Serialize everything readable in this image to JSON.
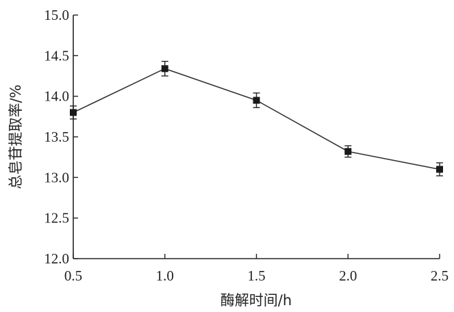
{
  "chart_data": {
    "type": "line",
    "x": [
      0.5,
      1.0,
      1.5,
      2.0,
      2.5
    ],
    "series": [
      {
        "values": [
          13.8,
          14.34,
          13.95,
          13.32,
          13.1
        ],
        "errors": [
          0.08,
          0.09,
          0.09,
          0.07,
          0.08
        ]
      }
    ],
    "xlabel": "酶解时间/h",
    "ylabel": "总皂苷提取率/%",
    "xlim": [
      0.5,
      2.5
    ],
    "ylim": [
      12.0,
      15.0
    ],
    "xticks": [
      "0.5",
      "1.0",
      "1.5",
      "2.0",
      "2.5"
    ],
    "yticks": [
      "12.0",
      "12.5",
      "13.0",
      "13.5",
      "14.0",
      "14.5",
      "15.0"
    ],
    "grid": false,
    "marker": "square"
  }
}
